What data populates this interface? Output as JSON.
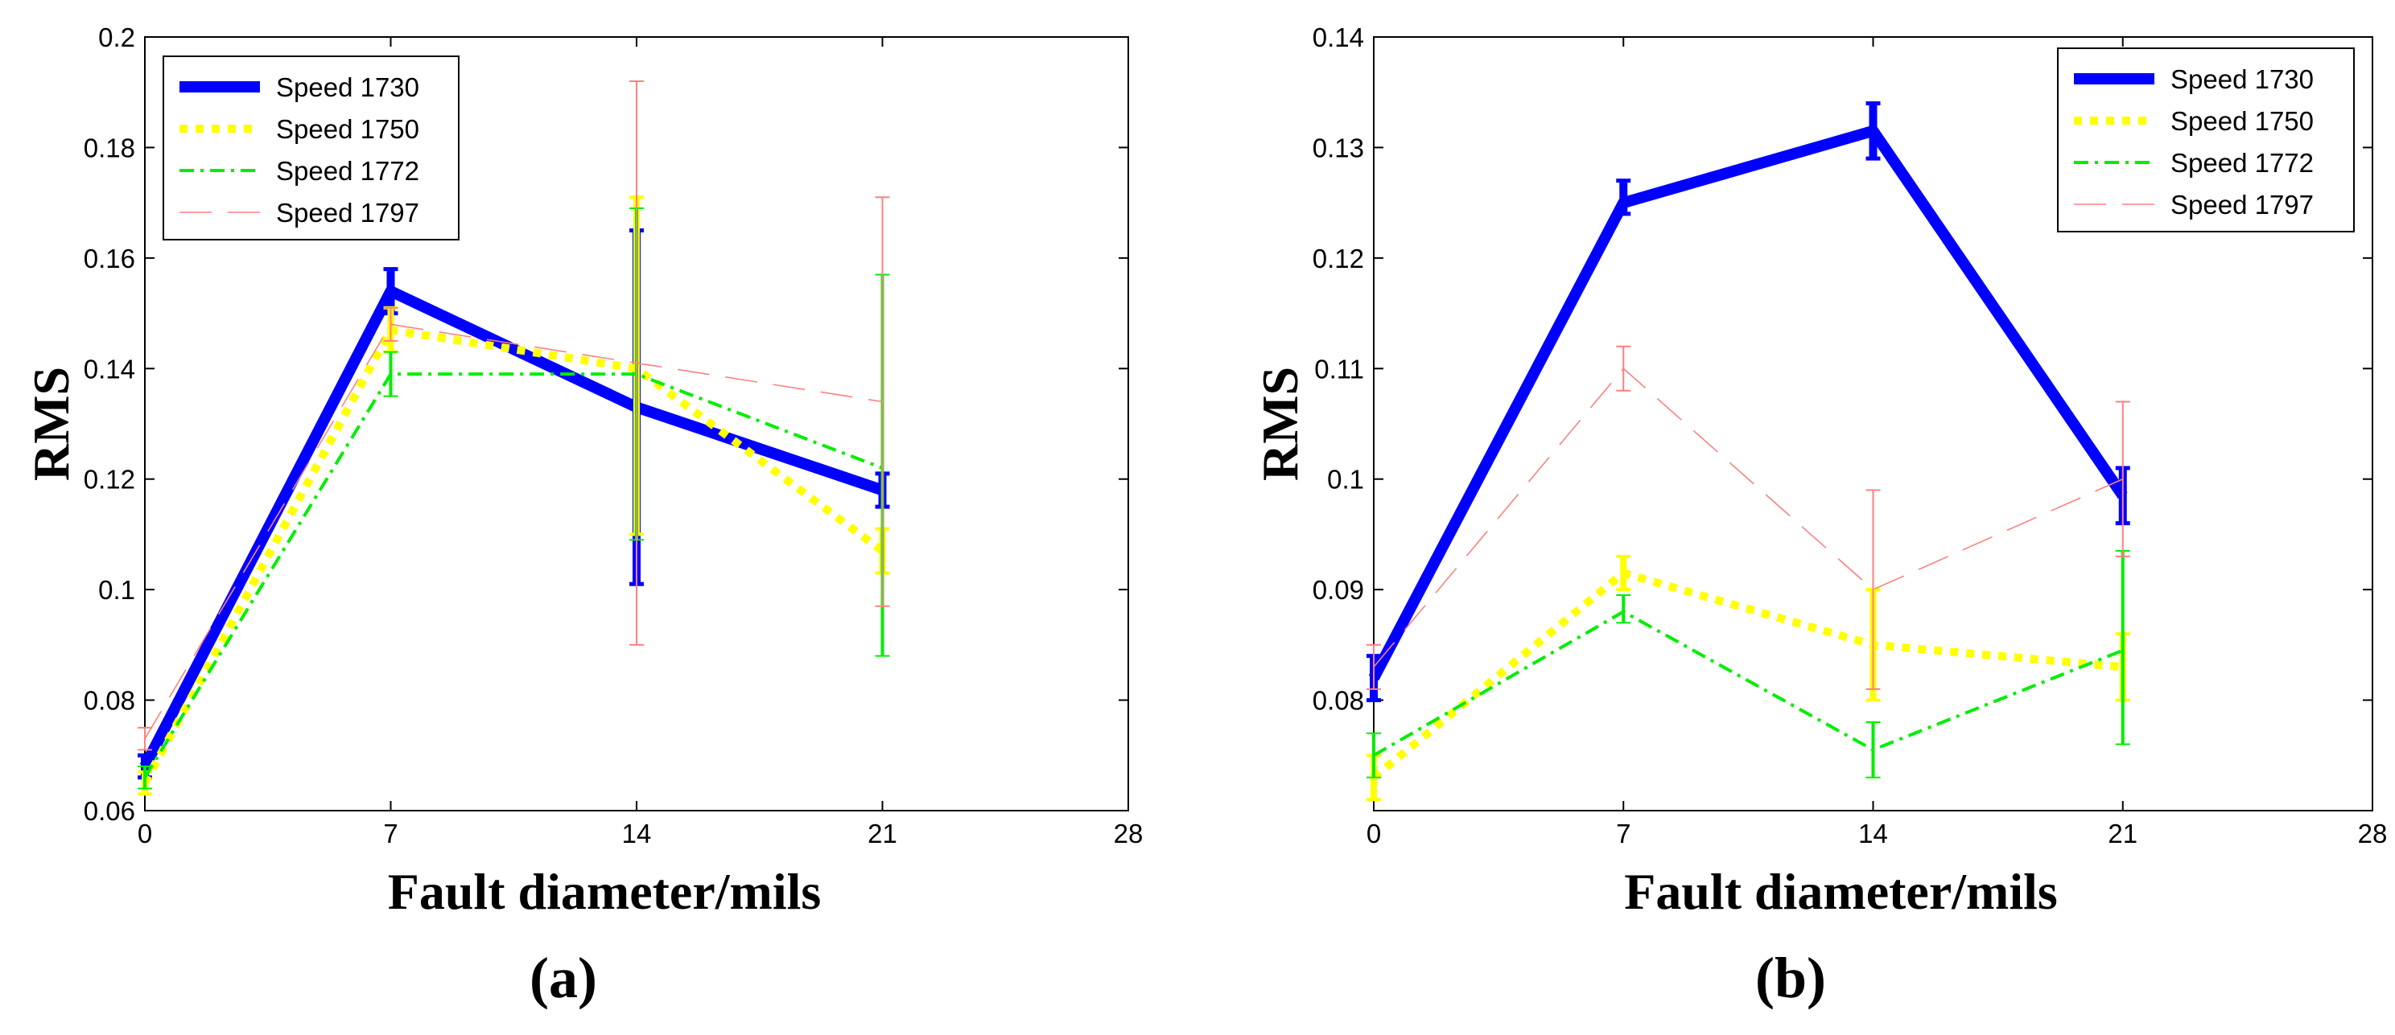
{
  "chart_data": [
    {
      "type": "line",
      "caption": "(a)",
      "xlabel": "Fault diameter/mils",
      "ylabel": "RMS",
      "xlim": [
        0,
        28
      ],
      "ylim": [
        0.06,
        0.2
      ],
      "xticks": [
        "0",
        "7",
        "14",
        "21",
        "28"
      ],
      "yticks": [
        "0.06",
        "0.08",
        "0.1",
        "0.12",
        "0.14",
        "0.16",
        "0.18",
        "0.2"
      ],
      "legend_position": "top-left",
      "x": [
        0,
        7,
        14,
        21
      ],
      "series": [
        {
          "name": "Speed 1730",
          "color": "#0000ff",
          "style": "solid-thick",
          "values": [
            0.068,
            0.154,
            0.133,
            0.118
          ],
          "errors": [
            [
              0.066,
              0.07
            ],
            [
              0.15,
              0.158
            ],
            [
              0.101,
              0.165
            ],
            [
              0.115,
              0.121
            ]
          ]
        },
        {
          "name": "Speed 1750",
          "color": "#ffff00",
          "style": "dotted",
          "values": [
            0.065,
            0.147,
            0.14,
            0.107
          ],
          "errors": [
            [
              0.063,
              0.067
            ],
            [
              0.143,
              0.151
            ],
            [
              0.11,
              0.171
            ],
            [
              0.103,
              0.111
            ]
          ]
        },
        {
          "name": "Speed 1772",
          "color": "#00ee00",
          "style": "dashdot",
          "values": [
            0.066,
            0.139,
            0.139,
            0.122
          ],
          "errors": [
            [
              0.064,
              0.068
            ],
            [
              0.135,
              0.143
            ],
            [
              0.109,
              0.169
            ],
            [
              0.088,
              0.157
            ]
          ]
        },
        {
          "name": "Speed 1797",
          "color": "#ff8080",
          "style": "dashed-thin",
          "values": [
            0.073,
            0.148,
            0.141,
            0.134
          ],
          "errors": [
            [
              0.071,
              0.075
            ],
            [
              0.145,
              0.151
            ],
            [
              0.09,
              0.192
            ],
            [
              0.097,
              0.171
            ]
          ]
        }
      ]
    },
    {
      "type": "line",
      "caption": "(b)",
      "xlabel": "Fault diameter/mils",
      "ylabel": "RMS",
      "xlim": [
        0,
        28
      ],
      "ylim": [
        0.07,
        0.14
      ],
      "xticks": [
        "0",
        "7",
        "14",
        "21",
        "28"
      ],
      "yticks": [
        "0.08",
        "0.09",
        "0.1",
        "0.11",
        "0.12",
        "0.13",
        "0.14"
      ],
      "legend_position": "top-right",
      "x": [
        0,
        7,
        14,
        21
      ],
      "series": [
        {
          "name": "Speed 1730",
          "color": "#0000ff",
          "style": "solid-thick",
          "values": [
            0.082,
            0.125,
            0.1315,
            0.0985
          ],
          "errors": [
            [
              0.08,
              0.084
            ],
            [
              0.124,
              0.127
            ],
            [
              0.129,
              0.134
            ],
            [
              0.096,
              0.101
            ]
          ]
        },
        {
          "name": "Speed 1750",
          "color": "#ffff00",
          "style": "dotted",
          "values": [
            0.073,
            0.0915,
            0.085,
            0.083
          ],
          "errors": [
            [
              0.071,
              0.075
            ],
            [
              0.09,
              0.093
            ],
            [
              0.08,
              0.09
            ],
            [
              0.08,
              0.086
            ]
          ]
        },
        {
          "name": "Speed 1772",
          "color": "#00ee00",
          "style": "dashdot",
          "values": [
            0.075,
            0.088,
            0.0755,
            0.0845
          ],
          "errors": [
            [
              0.073,
              0.077
            ],
            [
              0.087,
              0.0895
            ],
            [
              0.073,
              0.078
            ],
            [
              0.076,
              0.0935
            ]
          ]
        },
        {
          "name": "Speed 1797",
          "color": "#ff8080",
          "style": "dashed-thin",
          "values": [
            0.083,
            0.11,
            0.09,
            0.1
          ],
          "errors": [
            [
              0.081,
              0.085
            ],
            [
              0.108,
              0.112
            ],
            [
              0.081,
              0.099
            ],
            [
              0.093,
              0.107
            ]
          ]
        }
      ]
    }
  ]
}
